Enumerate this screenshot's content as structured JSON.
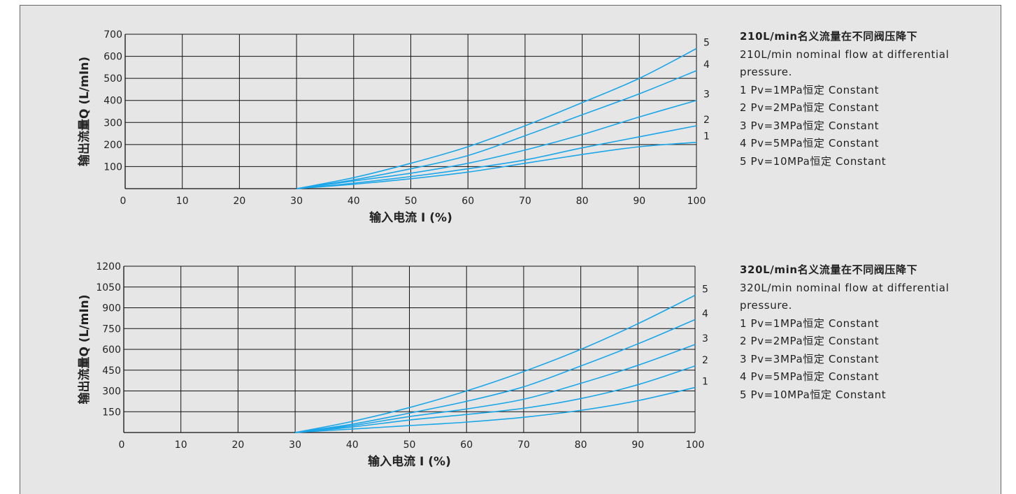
{
  "chart_data": [
    {
      "type": "line",
      "title": "",
      "xlabel": "输入电流 I (%)",
      "ylabel": "输出流量Q (L/mIn)",
      "xlim": [
        0,
        100
      ],
      "ylim": [
        0,
        700
      ],
      "x_ticks": [
        "0",
        "10",
        "20",
        "30",
        "40",
        "50",
        "60",
        "70",
        "80",
        "90",
        "100"
      ],
      "y_ticks": [
        "100",
        "200",
        "300",
        "400",
        "500",
        "600",
        "700"
      ],
      "y_tick_values": [
        100,
        200,
        300,
        400,
        500,
        600,
        700
      ],
      "grid": true,
      "line_color": "#1aa6e8",
      "series": [
        {
          "name": "1",
          "x": [
            30,
            40,
            50,
            60,
            70,
            80,
            90,
            100
          ],
          "values": [
            0,
            20,
            45,
            75,
            115,
            155,
            190,
            210
          ]
        },
        {
          "name": "2",
          "x": [
            30,
            40,
            50,
            60,
            70,
            80,
            90,
            100
          ],
          "values": [
            0,
            25,
            55,
            90,
            130,
            185,
            235,
            285
          ]
        },
        {
          "name": "3",
          "x": [
            30,
            40,
            50,
            60,
            70,
            80,
            90,
            100
          ],
          "values": [
            0,
            35,
            70,
            115,
            175,
            245,
            325,
            400
          ]
        },
        {
          "name": "4",
          "x": [
            30,
            40,
            50,
            60,
            70,
            80,
            90,
            100
          ],
          "values": [
            0,
            40,
            90,
            150,
            240,
            335,
            430,
            535
          ]
        },
        {
          "name": "5",
          "x": [
            30,
            40,
            50,
            60,
            70,
            80,
            90,
            100
          ],
          "values": [
            0,
            50,
            115,
            190,
            285,
            390,
            500,
            635
          ]
        }
      ],
      "legend": {
        "title_zh": "210L/min名义流量在不同阀压降下",
        "title_en_1": "210L/min nominal flow at differential",
        "title_en_2": "pressure.",
        "items": [
          "1  Pv=1MPa恒定 Constant",
          "2  Pv=2MPa恒定 Constant",
          "3  Pv=3MPa恒定 Constant",
          "4  Pv=5MPa恒定 Constant",
          "5  Pv=10MPa恒定 Constant"
        ]
      }
    },
    {
      "type": "line",
      "title": "",
      "xlabel": "输入电流 I (%)",
      "ylabel": "输出流量Q (L/mIn)",
      "xlim": [
        0,
        100
      ],
      "ylim": [
        0,
        1200
      ],
      "x_ticks": [
        "0",
        "10",
        "20",
        "30",
        "40",
        "50",
        "60",
        "70",
        "80",
        "90",
        "100"
      ],
      "y_ticks": [
        "150",
        "300",
        "450",
        "600",
        "750",
        "900",
        "1050",
        "1200"
      ],
      "y_tick_values": [
        150,
        300,
        450,
        600,
        750,
        900,
        1050,
        1200
      ],
      "grid": true,
      "line_color": "#1aa6e8",
      "series": [
        {
          "name": "1",
          "x": [
            30,
            40,
            50,
            60,
            70,
            80,
            90,
            100
          ],
          "values": [
            0,
            25,
            50,
            75,
            110,
            160,
            230,
            325
          ]
        },
        {
          "name": "2",
          "x": [
            30,
            40,
            50,
            60,
            70,
            80,
            90,
            100
          ],
          "values": [
            0,
            40,
            90,
            130,
            175,
            245,
            345,
            480
          ]
        },
        {
          "name": "3",
          "x": [
            30,
            40,
            50,
            60,
            70,
            80,
            90,
            100
          ],
          "values": [
            0,
            50,
            115,
            170,
            240,
            355,
            485,
            635
          ]
        },
        {
          "name": "4",
          "x": [
            30,
            40,
            50,
            60,
            70,
            80,
            90,
            100
          ],
          "values": [
            0,
            60,
            140,
            225,
            330,
            480,
            640,
            815
          ]
        },
        {
          "name": "5",
          "x": [
            30,
            40,
            50,
            60,
            70,
            80,
            90,
            100
          ],
          "values": [
            0,
            80,
            180,
            300,
            440,
            600,
            785,
            990
          ]
        }
      ],
      "legend": {
        "title_zh": "320L/min名义流量在不同阀压降下",
        "title_en_1": "320L/min nominal flow at differential",
        "title_en_2": "pressure.",
        "items": [
          "1  Pv=1MPa恒定 Constant",
          "2  Pv=2MPa恒定 Constant",
          "3  Pv=3MPa恒定 Constant",
          "4  Pv=5MPa恒定 Constant",
          "5  Pv=10MPa恒定 Constant"
        ]
      }
    }
  ]
}
